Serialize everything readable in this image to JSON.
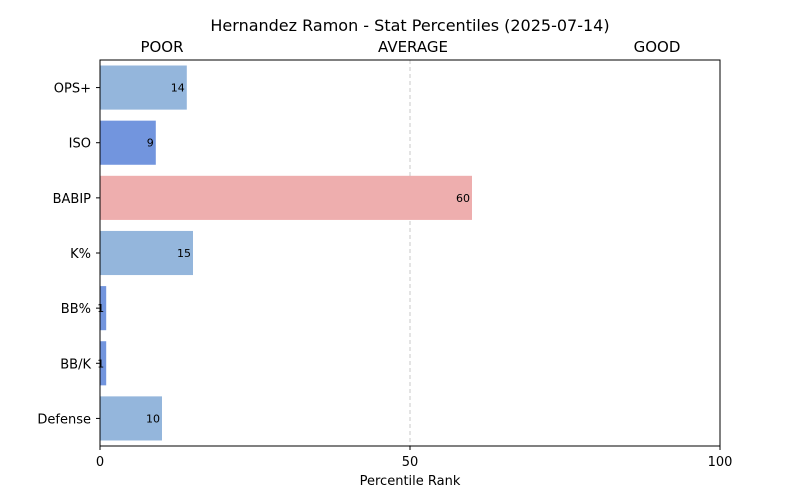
{
  "chart_data": {
    "type": "bar",
    "orientation": "horizontal",
    "title": "Hernandez Ramon - Stat Percentiles (2025-07-14)",
    "zone_labels": [
      "POOR",
      "AVERAGE",
      "GOOD"
    ],
    "xlabel": "Percentile Rank",
    "ylabel": "",
    "xlim": [
      0,
      100
    ],
    "xticks": [
      0,
      50,
      100
    ],
    "reference_line": 50,
    "grid": false,
    "categories": [
      "OPS+",
      "ISO",
      "BABIP",
      "K%",
      "BB%",
      "BB/K",
      "Defense"
    ],
    "values": [
      14,
      9,
      60,
      15,
      1,
      1,
      10
    ],
    "bar_colors": [
      "#94b6dc",
      "#7295de",
      "#eeaeae",
      "#94b6dc",
      "#7295de",
      "#7295de",
      "#94b6dc"
    ]
  }
}
